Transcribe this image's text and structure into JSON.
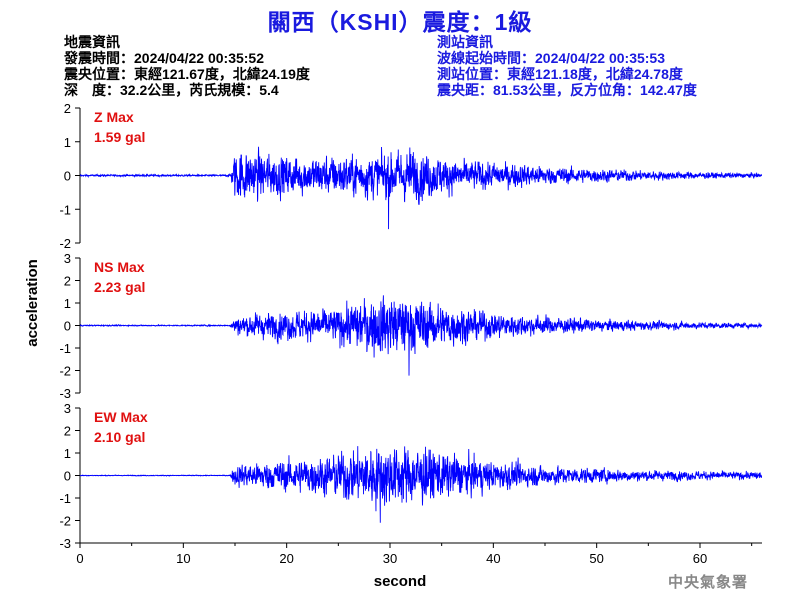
{
  "title": "關西（KSHI）震度：1級",
  "quake": {
    "heading": "地震資訊",
    "time": "發震時間：2024/04/22 00:35:52",
    "location": "震央位置：東經121.67度，北緯24.19度",
    "depth": "深　度：32.2公里，芮氏規模：5.4"
  },
  "station": {
    "heading": "測站資訊",
    "wave_start": "波線起始時間：2024/04/22 00:35:53",
    "location": "測站位置：東經121.18度，北緯24.78度",
    "distance": "震央距：81.53公里，反方位角：142.47度"
  },
  "footer": "中央氣象署",
  "colors": {
    "trace": "#0000ff",
    "label": "#e01010",
    "title": "#1a1adf"
  },
  "chart_data": {
    "type": "line",
    "xlabel": "second",
    "ylabel": "acceleration",
    "xlim": [
      0,
      66
    ],
    "xticks": [
      0,
      10,
      20,
      30,
      40,
      50,
      60
    ],
    "panels": [
      {
        "name": "Z Max",
        "max_label": "1.59 gal",
        "peak": 1.59,
        "ylim": [
          -2,
          2
        ],
        "yticks": [
          -2,
          -1,
          0,
          1,
          2
        ],
        "envelope": [
          [
            0,
            0.03
          ],
          [
            14.5,
            0.03
          ],
          [
            15,
            0.9
          ],
          [
            16,
            1.0
          ],
          [
            18,
            0.8
          ],
          [
            20,
            0.75
          ],
          [
            22,
            0.7
          ],
          [
            26,
            0.75
          ],
          [
            28,
            0.8
          ],
          [
            30,
            0.9
          ],
          [
            32,
            1.0
          ],
          [
            34,
            0.8
          ],
          [
            36,
            0.6
          ],
          [
            40,
            0.5
          ],
          [
            45,
            0.35
          ],
          [
            50,
            0.25
          ],
          [
            55,
            0.18
          ],
          [
            60,
            0.12
          ],
          [
            66,
            0.08
          ]
        ]
      },
      {
        "name": "NS Max",
        "max_label": "2.23 gal",
        "peak": 2.23,
        "ylim": [
          -3,
          3
        ],
        "yticks": [
          -3,
          -2,
          -1,
          0,
          1,
          2,
          3
        ],
        "envelope": [
          [
            0,
            0.03
          ],
          [
            14.5,
            0.03
          ],
          [
            15,
            0.5
          ],
          [
            17,
            0.7
          ],
          [
            20,
            0.8
          ],
          [
            24,
            0.9
          ],
          [
            27,
            1.3
          ],
          [
            29,
            1.8
          ],
          [
            31,
            1.6
          ],
          [
            34,
            1.3
          ],
          [
            37,
            1.0
          ],
          [
            40,
            0.7
          ],
          [
            45,
            0.5
          ],
          [
            50,
            0.35
          ],
          [
            55,
            0.25
          ],
          [
            60,
            0.18
          ],
          [
            66,
            0.12
          ]
        ]
      },
      {
        "name": "EW Max",
        "max_label": "2.10 gal",
        "peak": 2.1,
        "ylim": [
          -3,
          3
        ],
        "yticks": [
          -3,
          -2,
          -1,
          0,
          1,
          2,
          3
        ],
        "envelope": [
          [
            0,
            0.02
          ],
          [
            14.5,
            0.02
          ],
          [
            15,
            0.6
          ],
          [
            17,
            0.7
          ],
          [
            20,
            0.9
          ],
          [
            24,
            1.1
          ],
          [
            27,
            1.6
          ],
          [
            29,
            1.8
          ],
          [
            31,
            1.7
          ],
          [
            33,
            1.6
          ],
          [
            36,
            1.2
          ],
          [
            40,
            0.8
          ],
          [
            45,
            0.55
          ],
          [
            50,
            0.4
          ],
          [
            55,
            0.3
          ],
          [
            60,
            0.25
          ],
          [
            66,
            0.2
          ]
        ]
      }
    ]
  }
}
